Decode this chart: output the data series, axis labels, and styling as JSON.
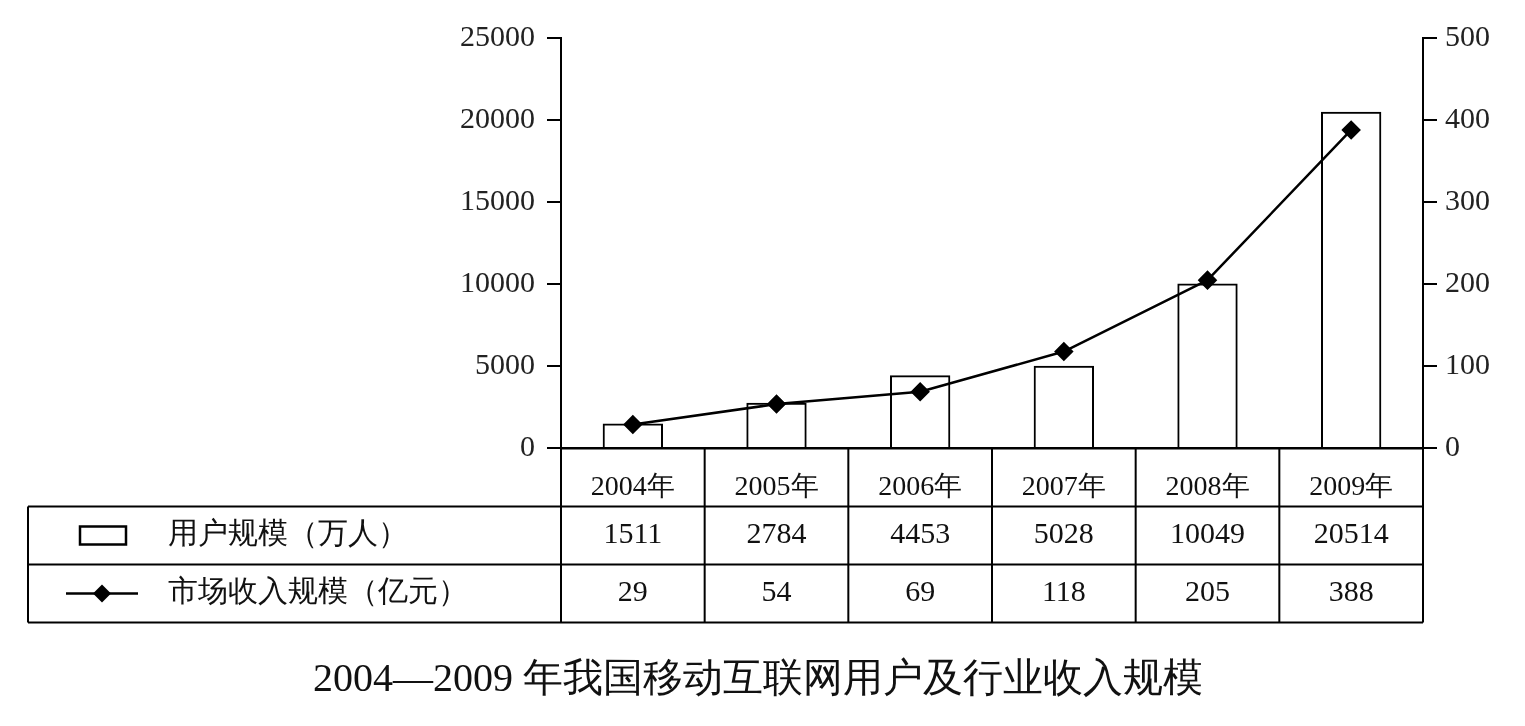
{
  "chart_data": {
    "type": "bar",
    "title": "2004—2009 年我国移动互联网用户及行业收入规模",
    "categories": [
      "2004年",
      "2005年",
      "2006年",
      "2007年",
      "2008年",
      "2009年"
    ],
    "series": [
      {
        "name": "用户规模（万人）",
        "color": "#000000",
        "values": [
          1511,
          2784,
          4453,
          5028,
          10049,
          20514
        ]
      },
      {
        "name": "市场收入规模（亿元）",
        "type": "line",
        "axis": "y2",
        "color": "#000000",
        "values": [
          29,
          54,
          69,
          118,
          205,
          388
        ]
      }
    ],
    "ylim": [
      0,
      25000
    ],
    "yticks": [
      0,
      5000,
      10000,
      15000,
      20000,
      25000
    ],
    "y2lim": [
      0,
      500
    ],
    "y2ticks": [
      0,
      100,
      200,
      300,
      400,
      500
    ],
    "data_labels": true,
    "legend": "bottom",
    "marker": "diamond"
  }
}
